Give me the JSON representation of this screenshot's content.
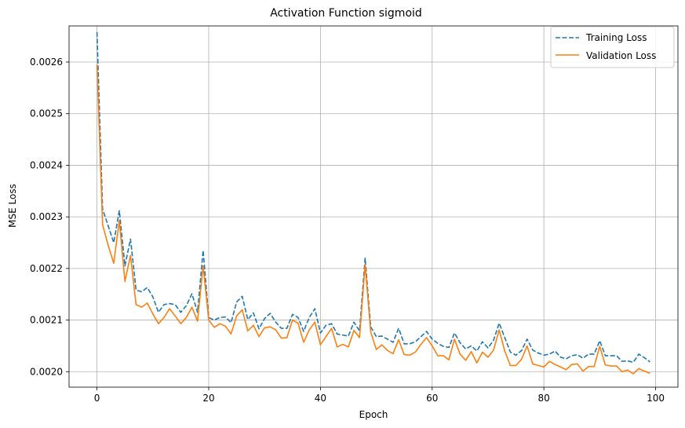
{
  "chart_data": {
    "type": "line",
    "title": "Activation Function sigmoid",
    "xlabel": "Epoch",
    "ylabel": "MSE Loss",
    "xlim": [
      -5,
      104
    ],
    "ylim": [
      0.00197,
      0.00267
    ],
    "xticks": [
      0,
      20,
      40,
      60,
      80,
      100
    ],
    "yticks": [
      0.002,
      0.0021,
      0.0022,
      0.0023,
      0.0024,
      0.0025,
      0.0026
    ],
    "ytick_labels": [
      "0.0020",
      "0.0021",
      "0.0022",
      "0.0023",
      "0.0024",
      "0.0025",
      "0.0026"
    ],
    "grid": true,
    "legend_position": "top-right",
    "x": [
      0,
      1,
      2,
      3,
      4,
      5,
      6,
      7,
      8,
      9,
      10,
      11,
      12,
      13,
      14,
      15,
      16,
      17,
      18,
      19,
      20,
      21,
      22,
      23,
      24,
      25,
      26,
      27,
      28,
      29,
      30,
      31,
      32,
      33,
      34,
      35,
      36,
      37,
      38,
      39,
      40,
      41,
      42,
      43,
      44,
      45,
      46,
      47,
      48,
      49,
      50,
      51,
      52,
      53,
      54,
      55,
      56,
      57,
      58,
      59,
      60,
      61,
      62,
      63,
      64,
      65,
      66,
      67,
      68,
      69,
      70,
      71,
      72,
      73,
      74,
      75,
      76,
      77,
      78,
      79,
      80,
      81,
      82,
      83,
      84,
      85,
      86,
      87,
      88,
      89,
      90,
      91,
      92,
      93,
      94,
      95,
      96,
      97,
      98,
      99
    ],
    "series": [
      {
        "name": "Training Loss",
        "color": "#1f77b4",
        "style": "dashed",
        "values": [
          0.002658,
          0.002315,
          0.002283,
          0.00225,
          0.002312,
          0.002205,
          0.002257,
          0.002158,
          0.002155,
          0.002163,
          0.002145,
          0.002115,
          0.00213,
          0.002132,
          0.00213,
          0.002115,
          0.002128,
          0.002151,
          0.002115,
          0.002235,
          0.002105,
          0.0021,
          0.002105,
          0.002106,
          0.002095,
          0.002135,
          0.002146,
          0.002101,
          0.002114,
          0.002083,
          0.002103,
          0.002113,
          0.002096,
          0.002084,
          0.002084,
          0.002111,
          0.002105,
          0.002078,
          0.002105,
          0.002122,
          0.002075,
          0.00209,
          0.002093,
          0.002073,
          0.002071,
          0.002069,
          0.002096,
          0.002079,
          0.00222,
          0.002087,
          0.002068,
          0.002069,
          0.002063,
          0.002057,
          0.002084,
          0.002054,
          0.002054,
          0.002058,
          0.002068,
          0.002078,
          0.002063,
          0.002055,
          0.002049,
          0.002047,
          0.002075,
          0.002056,
          0.002044,
          0.00205,
          0.00204,
          0.002058,
          0.002046,
          0.002061,
          0.002094,
          0.002066,
          0.002038,
          0.002032,
          0.002041,
          0.002063,
          0.002042,
          0.002036,
          0.002032,
          0.002034,
          0.00204,
          0.002028,
          0.002025,
          0.002031,
          0.002033,
          0.002026,
          0.002034,
          0.002034,
          0.00206,
          0.002031,
          0.002031,
          0.002031,
          0.00202,
          0.002021,
          0.002018,
          0.002034,
          0.002027,
          0.002019
        ]
      },
      {
        "name": "Validation Loss",
        "color": "#ff7f0e",
        "style": "solid",
        "values": [
          0.002595,
          0.002285,
          0.002245,
          0.00221,
          0.002293,
          0.002175,
          0.002225,
          0.00213,
          0.002125,
          0.002133,
          0.002112,
          0.002093,
          0.002105,
          0.002122,
          0.002108,
          0.002093,
          0.002105,
          0.002125,
          0.002098,
          0.002205,
          0.0021,
          0.002086,
          0.002093,
          0.002088,
          0.002073,
          0.002108,
          0.00212,
          0.002079,
          0.00209,
          0.002068,
          0.002085,
          0.002087,
          0.002081,
          0.002065,
          0.002066,
          0.0021,
          0.002094,
          0.002057,
          0.002081,
          0.002096,
          0.002052,
          0.002068,
          0.002084,
          0.002048,
          0.002053,
          0.002048,
          0.00208,
          0.002066,
          0.002207,
          0.002077,
          0.002043,
          0.002052,
          0.002041,
          0.002035,
          0.002062,
          0.002033,
          0.002032,
          0.002038,
          0.002053,
          0.002066,
          0.00205,
          0.002031,
          0.002031,
          0.002023,
          0.002063,
          0.002034,
          0.002022,
          0.002039,
          0.002017,
          0.002038,
          0.002028,
          0.002042,
          0.002081,
          0.00204,
          0.002012,
          0.002012,
          0.002024,
          0.00205,
          0.002015,
          0.002012,
          0.002009,
          0.00202,
          0.002014,
          0.002009,
          0.002004,
          0.002014,
          0.002015,
          0.002001,
          0.00201,
          0.00201,
          0.002049,
          0.002013,
          0.002011,
          0.002011,
          0.002,
          0.002003,
          0.001996,
          0.002006,
          0.002001,
          0.001997
        ]
      }
    ]
  }
}
